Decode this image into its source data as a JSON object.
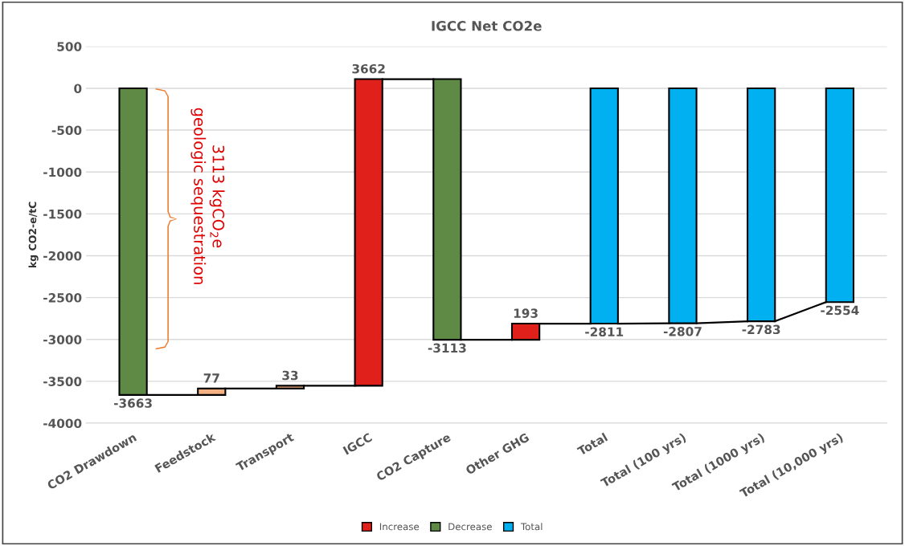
{
  "chart_data": {
    "type": "bar",
    "title": "IGCC Net CO2e",
    "ylabel": "kg CO2-e/tC",
    "categories": [
      "CO2 Drawdown",
      "Feedstock",
      "Transport",
      "IGCC",
      "CO2 Capture",
      "Other GHG",
      "Total",
      "Total (100 yrs)",
      "Total (1000 yrs)",
      "Total (10,000 yrs)"
    ],
    "series": [
      {
        "name": "Increase",
        "color": "#e0201a",
        "values": [
          null,
          77,
          33,
          3662,
          null,
          193,
          null,
          null,
          null,
          null
        ],
        "base": [
          null,
          -3663,
          -3586,
          -3553,
          null,
          -3004,
          null,
          null,
          null,
          null
        ],
        "colors": [
          null,
          "#f4b183",
          "#f4b183",
          "#e0201a",
          null,
          "#e0201a",
          null,
          null,
          null,
          null
        ]
      },
      {
        "name": "Decrease",
        "color": "#5f8a45",
        "values": [
          -3663,
          null,
          null,
          null,
          -3113,
          null,
          null,
          null,
          null,
          null
        ],
        "base": [
          0,
          null,
          null,
          null,
          109,
          null,
          null,
          null,
          null,
          null
        ]
      },
      {
        "name": "Total",
        "color": "#00b0f0",
        "values": [
          null,
          null,
          null,
          null,
          null,
          null,
          -2811,
          -2807,
          -2783,
          -2554
        ],
        "base": [
          null,
          null,
          null,
          null,
          null,
          null,
          0,
          0,
          0,
          0
        ]
      }
    ],
    "data_labels": true,
    "ylim": [
      -4000,
      500
    ],
    "yticks": [
      -4000,
      -3500,
      -3000,
      -2500,
      -2000,
      -1500,
      -1000,
      -500,
      0,
      500
    ],
    "grid": "y",
    "legend": "bottom",
    "annotations": [
      "3113 kgCO$_{2}$e\ngeologic sequestration"
    ]
  }
}
